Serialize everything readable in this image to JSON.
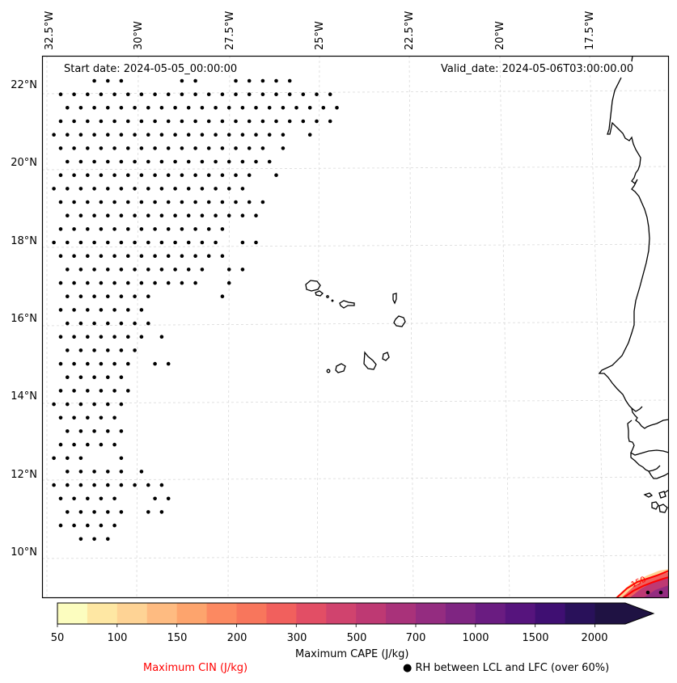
{
  "map": {
    "start_date": "Start date: 2024-05-05_00:00:00",
    "valid_date": "Valid_date: 2024-05-06T03:00:00.00",
    "lon_ticks": [
      "32.5°W",
      "30°W",
      "27.5°W",
      "25°W",
      "22.5°W",
      "20°W",
      "17.5°W"
    ],
    "lat_ticks": [
      "22°N",
      "20°N",
      "18°N",
      "16°N",
      "14°N",
      "12°N",
      "10°N"
    ],
    "colors": {
      "coastline": "#000000",
      "gridline": "#cccccc",
      "rh_dots": "#000000",
      "cin_contour": "#ff0000"
    },
    "cin_contour_label": "150"
  },
  "rh_dot_rows": [
    [
      [
        7,
        11
      ],
      [
        20,
        22
      ],
      [
        28,
        36
      ]
    ],
    [
      [
        2,
        42
      ]
    ],
    [
      [
        3,
        43
      ]
    ],
    [
      [
        2,
        42
      ]
    ],
    [
      [
        1,
        35
      ],
      [
        39,
        39
      ]
    ],
    [
      [
        2,
        32
      ],
      [
        35,
        35
      ]
    ],
    [
      [
        3,
        33
      ]
    ],
    [
      [
        2,
        30
      ],
      [
        34,
        34
      ]
    ],
    [
      [
        1,
        29
      ]
    ],
    [
      [
        2,
        32
      ]
    ],
    [
      [
        3,
        31
      ]
    ],
    [
      [
        2,
        26
      ]
    ],
    [
      [
        1,
        25
      ],
      [
        29,
        31
      ]
    ],
    [
      [
        2,
        26
      ]
    ],
    [
      [
        3,
        23
      ],
      [
        27,
        29
      ]
    ],
    [
      [
        2,
        22
      ],
      [
        27,
        28
      ]
    ],
    [
      [
        3,
        15
      ],
      [
        26,
        26
      ]
    ],
    [
      [
        2,
        14
      ]
    ],
    [
      [
        3,
        15
      ]
    ],
    [
      [
        2,
        14
      ],
      [
        17,
        17
      ]
    ],
    [
      [
        3,
        13
      ]
    ],
    [
      [
        2,
        12
      ],
      [
        16,
        18
      ]
    ],
    [
      [
        3,
        11
      ]
    ],
    [
      [
        2,
        12
      ]
    ],
    [
      [
        1,
        12
      ]
    ],
    [
      [
        2,
        11
      ]
    ],
    [
      [
        3,
        12
      ]
    ],
    [
      [
        2,
        10
      ]
    ],
    [
      [
        1,
        6
      ],
      [
        11,
        12
      ]
    ],
    [
      [
        3,
        11
      ],
      [
        14,
        15
      ]
    ],
    [
      [
        1,
        5
      ],
      [
        7,
        7
      ],
      [
        9,
        17
      ]
    ],
    [
      [
        2,
        10
      ],
      [
        16,
        18
      ]
    ],
    [
      [
        3,
        5
      ],
      [
        7,
        12
      ],
      [
        15,
        17
      ]
    ],
    [
      [
        2,
        10
      ]
    ],
    [
      [
        5,
        9
      ]
    ]
  ],
  "colorbar": {
    "title": "Maximum CAPE (J/kg)",
    "tick_labels": [
      "50",
      "100",
      "150",
      "200",
      "300",
      "500",
      "700",
      "1000",
      "1500",
      "2000"
    ],
    "levels": [
      50,
      75,
      100,
      125,
      150,
      175,
      200,
      250,
      300,
      400,
      500,
      600,
      700,
      800,
      1000,
      1250,
      1500,
      1750,
      2000
    ],
    "colors": [
      "#fcfdbf",
      "#fee7a3",
      "#fed395",
      "#febb81",
      "#fda46d",
      "#fc8961",
      "#f8765c",
      "#f1605d",
      "#e24e65",
      "#d0436e",
      "#be3973",
      "#a9327a",
      "#942c80",
      "#7f2582",
      "#6a1c81",
      "#56147d",
      "#3f0f72",
      "#29115a",
      "#1f1243"
    ],
    "extend": "max"
  },
  "legend": {
    "cin_label": "Maximum CIN (J/kg)",
    "cin_color": "#ff0000",
    "rh_label": "● RH between LCL and LFC (over 60%)"
  }
}
